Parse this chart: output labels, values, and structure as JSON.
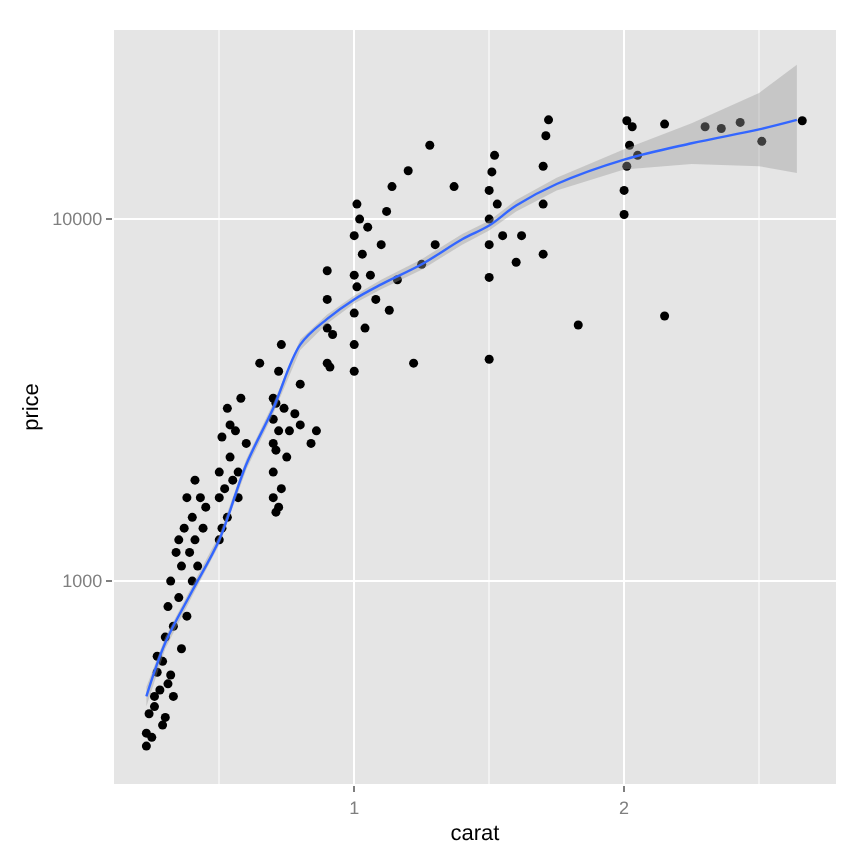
{
  "chart_data": {
    "type": "scatter",
    "xlabel": "carat",
    "ylabel": "price",
    "log": "y",
    "grid": true,
    "xlim": [
      0.11,
      2.785
    ],
    "xticks": [
      1,
      2
    ],
    "ylim": [
      275,
      33300
    ],
    "yticks": [
      1000,
      10000
    ],
    "series": [
      {
        "color": "#000000",
        "marker": "circle",
        "x": [
          0.23,
          0.23,
          0.24,
          0.25,
          0.26,
          0.27,
          0.28,
          0.29,
          0.3,
          0.3,
          0.31,
          0.32,
          0.32,
          0.33,
          0.34,
          0.35,
          0.36,
          0.36,
          0.37,
          0.38,
          0.39,
          0.4,
          0.4,
          0.41,
          0.42,
          0.43,
          0.45,
          0.33,
          0.31,
          0.29,
          0.27,
          0.26,
          0.35,
          0.38,
          0.41,
          0.44,
          0.5,
          0.5,
          0.5,
          0.51,
          0.52,
          0.53,
          0.54,
          0.55,
          0.56,
          0.57,
          0.58,
          0.6,
          0.53,
          0.51,
          0.54,
          0.57,
          0.65,
          0.7,
          0.7,
          0.7,
          0.7,
          0.71,
          0.71,
          0.72,
          0.72,
          0.73,
          0.74,
          0.75,
          0.76,
          0.78,
          0.8,
          0.8,
          0.84,
          0.86,
          0.73,
          0.72,
          0.7,
          0.71,
          0.9,
          0.9,
          0.9,
          0.91,
          0.92,
          0.9,
          1.0,
          1.0,
          1.0,
          1.0,
          1.0,
          1.01,
          1.01,
          1.02,
          1.03,
          1.04,
          1.05,
          1.06,
          1.08,
          1.1,
          1.12,
          1.14,
          1.2,
          1.28,
          1.37,
          1.22,
          1.16,
          1.13,
          1.25,
          1.3,
          1.5,
          1.5,
          1.5,
          1.5,
          1.51,
          1.52,
          1.5,
          1.53,
          1.55,
          1.6,
          1.62,
          1.7,
          1.7,
          1.7,
          1.71,
          1.72,
          1.83,
          2.0,
          2.0,
          2.01,
          2.02,
          2.03,
          2.01,
          2.05,
          2.15,
          2.15,
          2.3,
          2.36,
          2.43,
          2.51,
          2.66
        ],
        "values": [
          350,
          380,
          430,
          370,
          450,
          560,
          500,
          600,
          420,
          700,
          850,
          550,
          1000,
          750,
          1200,
          900,
          1100,
          650,
          1400,
          800,
          1200,
          1000,
          1500,
          1300,
          1100,
          1700,
          1600,
          480,
          520,
          400,
          620,
          480,
          1300,
          1700,
          1900,
          1400,
          1300,
          1700,
          2000,
          2500,
          1800,
          3000,
          2200,
          1900,
          2600,
          2000,
          3200,
          2400,
          1500,
          1400,
          2700,
          1700,
          4000,
          2000,
          2400,
          2800,
          3200,
          3100,
          2300,
          1600,
          2600,
          1800,
          3000,
          2200,
          2600,
          2900,
          3500,
          2700,
          2400,
          2600,
          4500,
          3800,
          1700,
          1550,
          4000,
          5000,
          6000,
          3900,
          4800,
          7200,
          3800,
          4500,
          5500,
          7000,
          9000,
          11000,
          6500,
          10000,
          8000,
          5000,
          9500,
          7000,
          6000,
          8500,
          10500,
          12300,
          13600,
          16000,
          12300,
          4000,
          6800,
          5600,
          7500,
          8500,
          6900,
          8500,
          10000,
          12000,
          13500,
          15000,
          4100,
          11000,
          9000,
          7600,
          9000,
          8000,
          11000,
          14000,
          17000,
          18800,
          5100,
          10300,
          12000,
          14000,
          16000,
          18000,
          18700,
          15000,
          5400,
          18300,
          18000,
          17800,
          18500,
          16400,
          18700
        ]
      },
      {
        "type": "line",
        "color": "#3366ff",
        "marker": "none",
        "x": [
          0.23,
          0.3,
          0.4,
          0.5,
          0.6,
          0.7,
          0.8,
          0.9,
          1.0,
          1.1,
          1.25,
          1.4,
          1.5,
          1.6,
          1.75,
          2.0,
          2.25,
          2.5,
          2.64
        ],
        "values": [
          480,
          675,
          940,
          1300,
          2100,
          3000,
          4500,
          5300,
          6000,
          6600,
          7500,
          8800,
          9600,
          10900,
          12500,
          14600,
          16200,
          17700,
          18800
        ],
        "lower": [
          450,
          650,
          910,
          1260,
          2030,
          2900,
          4350,
          5150,
          5850,
          6400,
          7250,
          8500,
          9300,
          10500,
          12000,
          13700,
          14200,
          14000,
          13400
        ],
        "upper": [
          510,
          700,
          970,
          1340,
          2170,
          3100,
          4650,
          5450,
          6150,
          6800,
          7750,
          9100,
          9900,
          11300,
          13000,
          15600,
          18400,
          22300,
          26700
        ]
      }
    ]
  }
}
